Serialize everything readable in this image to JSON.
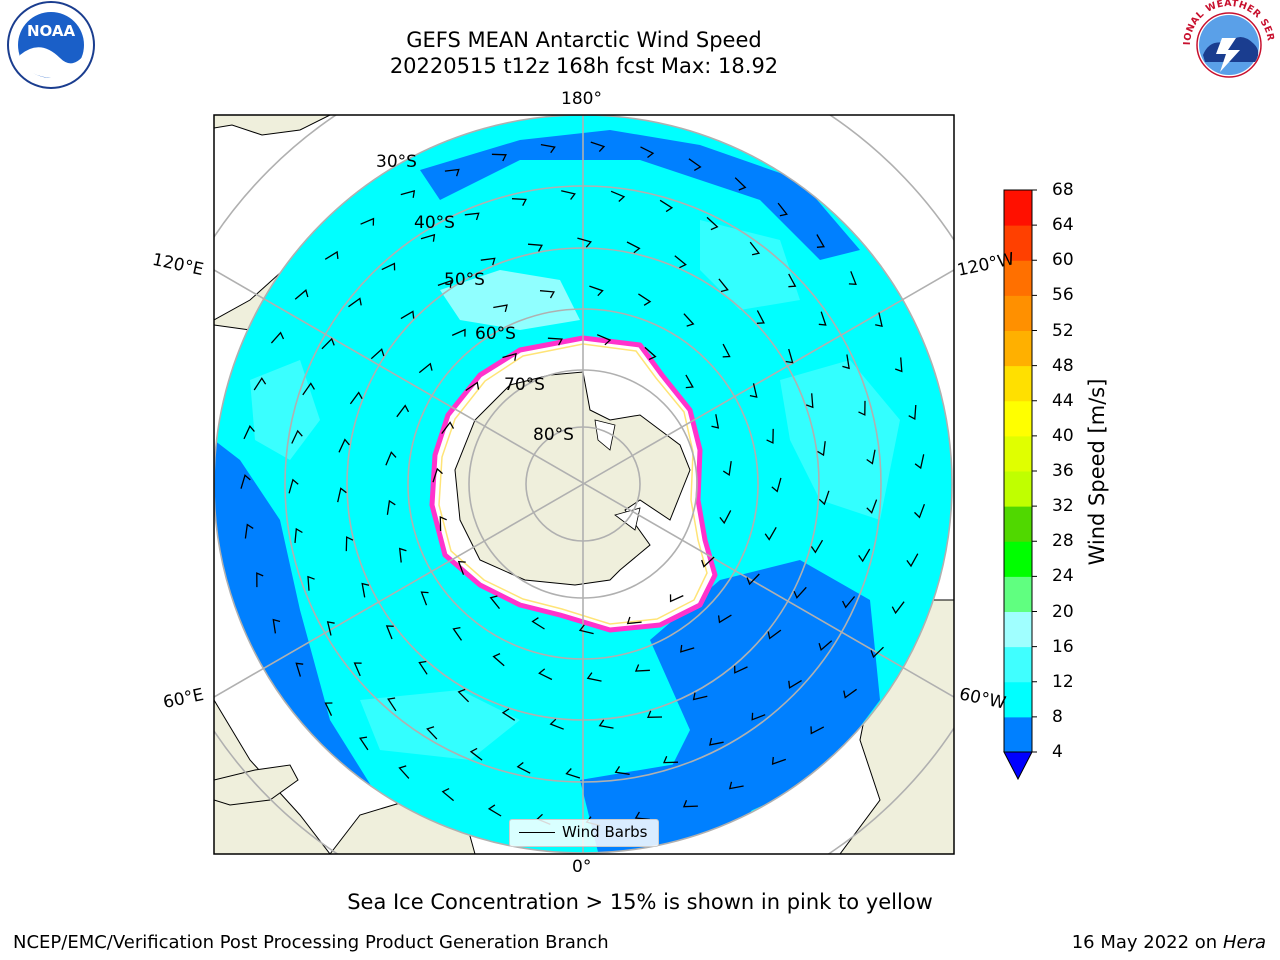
{
  "title": "GEFS MEAN Antarctic Wind Speed",
  "subtitle": "20220515 t12z 168h fcst   Max: 18.92",
  "caption": "Sea Ice Concentration > 15% is shown in pink to yellow",
  "footer_left": "NCEP/EMC/Verification Post Processing Product Generation Branch",
  "footer_right_date": "16 May 2022 on",
  "footer_right_host": "Hera",
  "logo_left": "NOAA",
  "logo_right": "NATIONAL WEATHER SERVICE",
  "longitude_labels": {
    "top": "180°",
    "bottom": "0°",
    "upper_left": "120°E",
    "upper_right": "120°W",
    "lower_left": "60°E",
    "lower_right": "60°W"
  },
  "latitude_labels": [
    "30°S",
    "40°S",
    "50°S",
    "60°S",
    "70°S",
    "80°S"
  ],
  "legend": {
    "label": "Wind Barbs"
  },
  "colorbar": {
    "label": "Wind Speed [m/s]",
    "ticks": [
      "4",
      "8",
      "12",
      "16",
      "20",
      "24",
      "28",
      "32",
      "36",
      "40",
      "44",
      "48",
      "52",
      "56",
      "60",
      "64",
      "68"
    ],
    "colors": [
      "#0080ff",
      "#00ffff",
      "#40ffff",
      "#a0ffff",
      "#60ff80",
      "#00ff00",
      "#50d800",
      "#c0ff00",
      "#e0ff00",
      "#ffff00",
      "#ffe000",
      "#ffb000",
      "#ff9000",
      "#ff7000",
      "#ff4000",
      "#ff1000"
    ],
    "under_color": "#0000ff"
  },
  "colors": {
    "ocean_low": "#0080ff",
    "ocean_mid": "#00ffff",
    "ocean_high": "#a0ffff",
    "land": "#efefdc",
    "ice_edge": "#ff33cc",
    "ice_core": "#ffffff"
  }
}
